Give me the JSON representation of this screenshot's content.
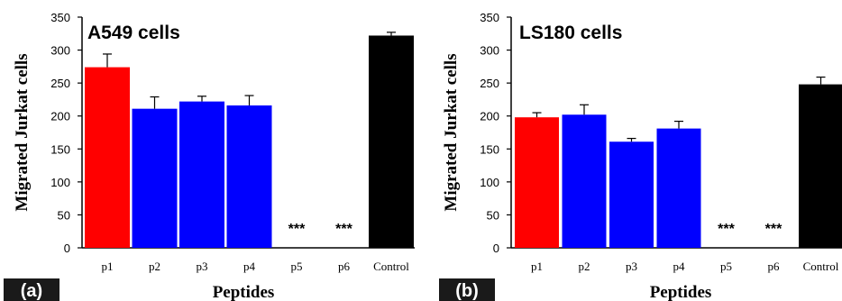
{
  "chart_data": [
    {
      "type": "bar",
      "panel_label": "(a)",
      "title": "A549 cells",
      "xlabel": "Peptides",
      "ylabel": "Migrated Jurkat cells",
      "ylim": [
        0,
        350
      ],
      "yticks": [
        0,
        50,
        100,
        150,
        200,
        250,
        300,
        350
      ],
      "categories": [
        "p1",
        "p2",
        "p3",
        "p4",
        "p5",
        "p6",
        "Control"
      ],
      "values": [
        274,
        211,
        222,
        216,
        0,
        0,
        322
      ],
      "errors": [
        20,
        18,
        8,
        15,
        0,
        0,
        5
      ],
      "annotations": [
        "",
        "",
        "",
        "",
        "***",
        "***",
        ""
      ],
      "colors": [
        "#ff0000",
        "#0000ff",
        "#0000ff",
        "#0000ff",
        "#0000ff",
        "#0000ff",
        "#000000"
      ],
      "grid": false
    },
    {
      "type": "bar",
      "panel_label": "(b)",
      "title": "LS180 cells",
      "xlabel": "Peptides",
      "ylabel": "Migrated Jurkat cells",
      "ylim": [
        0,
        350
      ],
      "yticks": [
        0,
        50,
        100,
        150,
        200,
        250,
        300,
        350
      ],
      "categories": [
        "p1",
        "p2",
        "p3",
        "p4",
        "p5",
        "p6",
        "Control"
      ],
      "values": [
        198,
        202,
        161,
        181,
        0,
        0,
        248
      ],
      "errors": [
        7,
        15,
        5,
        11,
        0,
        0,
        11
      ],
      "annotations": [
        "",
        "",
        "",
        "",
        "***",
        "***",
        ""
      ],
      "colors": [
        "#ff0000",
        "#0000ff",
        "#0000ff",
        "#0000ff",
        "#0000ff",
        "#0000ff",
        "#000000"
      ],
      "grid": false
    }
  ]
}
